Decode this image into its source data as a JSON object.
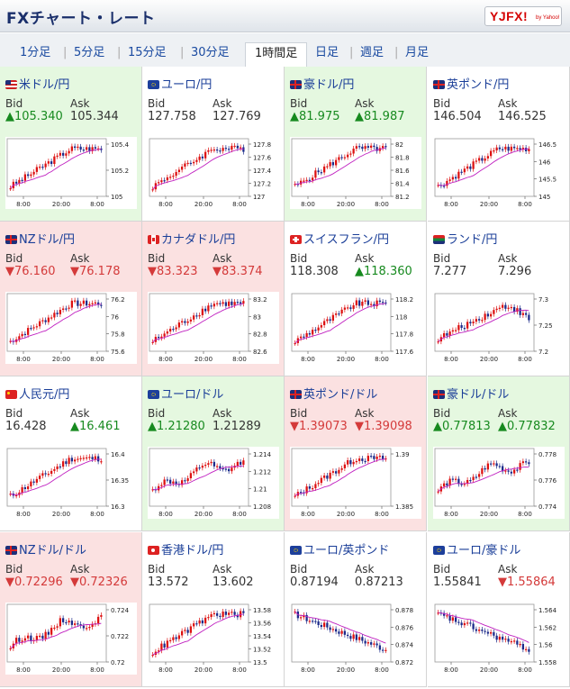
{
  "header": {
    "title": "FXチャート・レート",
    "logo_main": "YJFX!",
    "logo_sub": "by Yahoo!"
  },
  "tabs": [
    {
      "label": "1分足",
      "active": false
    },
    {
      "label": "5分足",
      "active": false
    },
    {
      "label": "15分足",
      "active": false
    },
    {
      "label": "30分足",
      "active": false
    },
    {
      "label": "1時間足",
      "active": true
    },
    {
      "label": "日足",
      "active": false
    },
    {
      "label": "週足",
      "active": false
    },
    {
      "label": "月足",
      "active": false
    }
  ],
  "labels": {
    "bid": "Bid",
    "ask": "Ask"
  },
  "colors": {
    "up_bg": "#e5f8e0",
    "down_bg": "#fbe1e1",
    "up_text": "#178a1f",
    "down_text": "#d43a3a",
    "candle_up": "#d11",
    "candle_down": "#1c2a8a",
    "ma": "#c020c0"
  },
  "x_ticks": [
    "8:00",
    "20:00",
    "8:00"
  ],
  "pairs": [
    {
      "name": "米ドル/円",
      "flag": "us-jp",
      "bg": "up",
      "bid": "▲105.340",
      "bid_dir": "up",
      "ask": "105.344",
      "ask_dir": "neutral",
      "ylabels": [
        "105.4",
        "105.2",
        "105"
      ]
    },
    {
      "name": "ユーロ/円",
      "flag": "eu-jp",
      "bg": "neutral",
      "bid": "127.758",
      "bid_dir": "neutral",
      "ask": "127.769",
      "ask_dir": "neutral",
      "ylabels": [
        "127.8",
        "127.6",
        "127.4",
        "127.2",
        "127"
      ]
    },
    {
      "name": "豪ドル/円",
      "flag": "au-jp",
      "bg": "up",
      "bid": "▲81.975",
      "bid_dir": "up",
      "ask": "▲81.987",
      "ask_dir": "up",
      "ylabels": [
        "82",
        "81.8",
        "81.6",
        "81.4",
        "81.2"
      ]
    },
    {
      "name": "英ポンド/円",
      "flag": "gb-jp",
      "bg": "neutral",
      "bid": "146.504",
      "bid_dir": "neutral",
      "ask": "146.525",
      "ask_dir": "neutral",
      "ylabels": [
        "146.5",
        "146",
        "145.5",
        "145"
      ]
    },
    {
      "name": "NZドル/円",
      "flag": "nz-jp",
      "bg": "down",
      "bid": "▼76.160",
      "bid_dir": "down",
      "ask": "▼76.178",
      "ask_dir": "down",
      "ylabels": [
        "76.2",
        "76",
        "75.8",
        "75.6"
      ]
    },
    {
      "name": "カナダドル/円",
      "flag": "ca-jp",
      "bg": "down",
      "bid": "▼83.323",
      "bid_dir": "down",
      "ask": "▼83.374",
      "ask_dir": "down",
      "ylabels": [
        "83.2",
        "83",
        "82.8",
        "82.6"
      ]
    },
    {
      "name": "スイスフラン/円",
      "flag": "ch-jp",
      "bg": "neutral",
      "bid": "118.308",
      "bid_dir": "neutral",
      "ask": "▲118.360",
      "ask_dir": "up",
      "ylabels": [
        "118.2",
        "118",
        "117.8",
        "117.6"
      ]
    },
    {
      "name": "ランド/円",
      "flag": "za-jp",
      "bg": "neutral",
      "bid": "7.277",
      "bid_dir": "neutral",
      "ask": "7.296",
      "ask_dir": "neutral",
      "ylabels": [
        "7.3",
        "7.25",
        "7.2"
      ]
    },
    {
      "name": "人民元/円",
      "flag": "cn-jp",
      "bg": "neutral",
      "bid": "16.428",
      "bid_dir": "neutral",
      "ask": "▲16.461",
      "ask_dir": "up",
      "ylabels": [
        "16.4",
        "16.35",
        "16.3"
      ]
    },
    {
      "name": "ユーロ/ドル",
      "flag": "eu-us",
      "bg": "up",
      "bid": "▲1.21280",
      "bid_dir": "up",
      "ask": "1.21289",
      "ask_dir": "neutral",
      "ylabels": [
        "1.214",
        "1.212",
        "1.21",
        "1.208"
      ]
    },
    {
      "name": "英ポンド/ドル",
      "flag": "gb-us",
      "bg": "down",
      "bid": "▼1.39073",
      "bid_dir": "down",
      "ask": "▼1.39098",
      "ask_dir": "down",
      "ylabels": [
        "1.39",
        "1.385"
      ]
    },
    {
      "name": "豪ドル/ドル",
      "flag": "au-us",
      "bg": "up",
      "bid": "▲0.77813",
      "bid_dir": "up",
      "ask": "▲0.77832",
      "ask_dir": "up",
      "ylabels": [
        "0.778",
        "0.776",
        "0.774"
      ]
    },
    {
      "name": "NZドル/ドル",
      "flag": "nz-us",
      "bg": "down",
      "bid": "▼0.72296",
      "bid_dir": "down",
      "ask": "▼0.72326",
      "ask_dir": "down",
      "ylabels": [
        "0.724",
        "0.722",
        "0.72"
      ]
    },
    {
      "name": "香港ドル/円",
      "flag": "hk-jp",
      "bg": "neutral",
      "bid": "13.572",
      "bid_dir": "neutral",
      "ask": "13.602",
      "ask_dir": "neutral",
      "ylabels": [
        "13.58",
        "13.56",
        "13.54",
        "13.52",
        "13.5"
      ]
    },
    {
      "name": "ユーロ/英ポンド",
      "flag": "eu-gb",
      "bg": "neutral",
      "bid": "0.87194",
      "bid_dir": "neutral",
      "ask": "0.87213",
      "ask_dir": "neutral",
      "ylabels": [
        "0.878",
        "0.876",
        "0.874",
        "0.872"
      ]
    },
    {
      "name": "ユーロ/豪ドル",
      "flag": "eu-au",
      "bg": "neutral",
      "bid": "1.55841",
      "bid_dir": "neutral",
      "ask": "▼1.55864",
      "ask_dir": "down",
      "ylabels": [
        "1.564",
        "1.562",
        "1.56",
        "1.558"
      ]
    }
  ]
}
